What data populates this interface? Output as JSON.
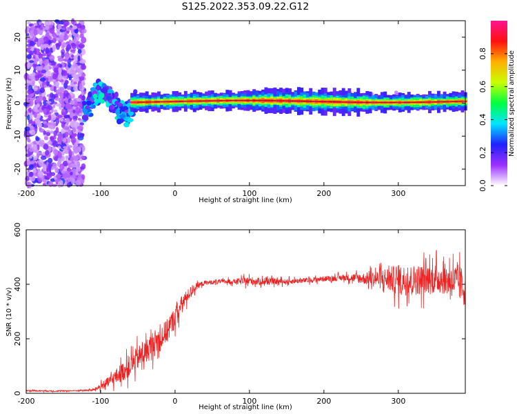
{
  "figure": {
    "title": "S125.2022.353.09.22.G12"
  },
  "chart_data": [
    {
      "type": "heatmap",
      "xlabel": "Height of straight line (km)",
      "ylabel": "Frequency (Hz)",
      "xlim": [
        -200,
        390
      ],
      "ylim": [
        -25,
        25
      ],
      "xticks": [
        -200,
        -100,
        0,
        100,
        200,
        300
      ],
      "yticks": [
        -20,
        -10,
        0,
        10,
        20
      ],
      "colorbar": {
        "label": "Normalized spectral amplitude",
        "range": [
          0,
          1
        ],
        "ticks": [
          "0.0",
          "0.2",
          "0.4",
          "0.6",
          "0.8"
        ],
        "colormap": "rainbow",
        "stops": [
          "#ffffff",
          "#9b30ff",
          "#2020ff",
          "#00e5ff",
          "#00ff40",
          "#c8ff00",
          "#ffb000",
          "#ff1010",
          "#ff1493"
        ]
      },
      "regions": [
        {
          "x": [
            -200,
            -122
          ],
          "freq_center": 0,
          "freq_spread": 25,
          "amplitude": 0.15,
          "description_hidden": true
        },
        {
          "x": [
            -122,
            -60
          ],
          "freq_center": -2,
          "freq_spread": 8,
          "amplitude": 0.35
        },
        {
          "x": [
            -60,
            390
          ],
          "freq_center": 0.5,
          "freq_spread": 1.5,
          "amplitude": 0.9
        }
      ]
    },
    {
      "type": "line",
      "xlabel": "Height of straight line (km)",
      "ylabel": "SNR (10 * v/v)",
      "xlim": [
        -200,
        390
      ],
      "ylim": [
        0,
        600
      ],
      "xticks": [
        -200,
        -100,
        0,
        100,
        200,
        300
      ],
      "yticks": [
        0,
        200,
        400,
        600
      ],
      "series": [
        {
          "color": "#ee2222",
          "x": [
            -200,
            -160,
            -130,
            -110,
            -100,
            -90,
            -80,
            -70,
            -60,
            -50,
            -40,
            -30,
            -20,
            -10,
            0,
            10,
            20,
            30,
            40,
            60,
            80,
            100,
            120,
            150,
            180,
            200,
            230,
            260,
            280,
            300,
            320,
            340,
            360,
            380,
            390
          ],
          "y": [
            10,
            8,
            10,
            12,
            25,
            40,
            60,
            80,
            100,
            130,
            150,
            180,
            200,
            230,
            280,
            330,
            370,
            395,
            405,
            410,
            410,
            412,
            410,
            410,
            415,
            420,
            425,
            420,
            420,
            415,
            415,
            420,
            420,
            410,
            380
          ],
          "noise": [
            3,
            3,
            3,
            5,
            15,
            25,
            35,
            45,
            50,
            55,
            55,
            60,
            60,
            55,
            50,
            40,
            25,
            15,
            10,
            10,
            12,
            20,
            15,
            12,
            12,
            12,
            15,
            30,
            50,
            70,
            70,
            70,
            70,
            80,
            90
          ]
        }
      ]
    }
  ]
}
